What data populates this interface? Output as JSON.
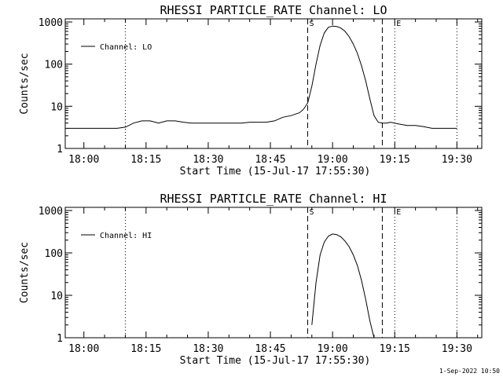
{
  "footer": "1-Sep-2022 10:50",
  "chart_data": [
    {
      "type": "line",
      "title": "RHESSI PARTICLE_RATE Channel: LO",
      "ylabel": "Counts/sec",
      "xlabel": "Start Time (15-Jul-17 17:55:30)",
      "legend": "Channel: LO",
      "legend_position": "top-left",
      "yscale": "log",
      "ylim": [
        1,
        1000
      ],
      "xlim": [
        "17:55:30",
        "19:36:00"
      ],
      "x_ticks": [
        "18:00",
        "18:15",
        "18:30",
        "18:45",
        "19:00",
        "19:15",
        "19:30"
      ],
      "y_ticks": [
        "1",
        "10",
        "100",
        "1000"
      ],
      "markers": [
        {
          "label": "",
          "time": "18:10",
          "style": "dotted"
        },
        {
          "label": "S",
          "time": "18:54",
          "style": "dashed"
        },
        {
          "label": "",
          "time": "19:12",
          "style": "dashed"
        },
        {
          "label": "E",
          "time": "19:15",
          "style": "dotted"
        },
        {
          "label": "",
          "time": "19:30",
          "style": "dotted"
        }
      ],
      "series": [
        {
          "x": [
            "17:56",
            "17:58",
            "18:00",
            "18:02",
            "18:04",
            "18:06",
            "18:08",
            "18:10",
            "18:12",
            "18:14",
            "18:16",
            "18:18",
            "18:20",
            "18:22",
            "18:24",
            "18:26",
            "18:28",
            "18:30",
            "18:32",
            "18:34",
            "18:36",
            "18:38",
            "18:40",
            "18:42",
            "18:44",
            "18:46",
            "18:48",
            "18:50",
            "18:52",
            "18:53",
            "18:54",
            "18:55",
            "18:56",
            "18:57",
            "18:58",
            "18:59",
            "19:00",
            "19:01",
            "19:02",
            "19:03",
            "19:04",
            "19:05",
            "19:06",
            "19:07",
            "19:08",
            "19:09",
            "19:10",
            "19:11",
            "19:12",
            "19:13",
            "19:14",
            "19:16",
            "19:18",
            "19:20",
            "19:22",
            "19:24",
            "19:26",
            "19:28",
            "19:30"
          ],
          "values": [
            3,
            3,
            3,
            3,
            3,
            3,
            3,
            3.2,
            4,
            4.5,
            4.5,
            4,
            4.5,
            4.5,
            4.2,
            4,
            4,
            4,
            4,
            4,
            4,
            4,
            4.2,
            4.2,
            4.2,
            4.5,
            5.5,
            6,
            7,
            8.5,
            12,
            30,
            100,
            280,
            550,
            750,
            800,
            780,
            720,
            600,
            450,
            300,
            180,
            90,
            40,
            15,
            6,
            4.2,
            4,
            4,
            4.2,
            3.8,
            3.5,
            3.5,
            3.3,
            3,
            3,
            3,
            3
          ]
        }
      ]
    },
    {
      "type": "line",
      "title": "RHESSI PARTICLE_RATE Channel: HI",
      "ylabel": "Counts/sec",
      "xlabel": "Start Time (15-Jul-17 17:55:30)",
      "legend": "Channel: HI",
      "legend_position": "top-left",
      "yscale": "log",
      "ylim": [
        1,
        1000
      ],
      "xlim": [
        "17:55:30",
        "19:36:00"
      ],
      "x_ticks": [
        "18:00",
        "18:15",
        "18:30",
        "18:45",
        "19:00",
        "19:15",
        "19:30"
      ],
      "y_ticks": [
        "1",
        "10",
        "100",
        "1000"
      ],
      "markers": [
        {
          "label": "",
          "time": "18:10",
          "style": "dotted"
        },
        {
          "label": "S",
          "time": "18:54",
          "style": "dashed"
        },
        {
          "label": "",
          "time": "19:12",
          "style": "dashed"
        },
        {
          "label": "E",
          "time": "19:15",
          "style": "dotted"
        },
        {
          "label": "",
          "time": "19:30",
          "style": "dotted"
        }
      ],
      "series": [
        {
          "x": [
            "18:55",
            "18:56",
            "18:57",
            "18:58",
            "18:59",
            "19:00",
            "19:01",
            "19:02",
            "19:03",
            "19:04",
            "19:05",
            "19:06",
            "19:07",
            "19:08",
            "19:09",
            "19:10"
          ],
          "values": [
            2,
            20,
            90,
            180,
            250,
            280,
            270,
            240,
            190,
            140,
            90,
            50,
            22,
            8,
            2.5,
            1
          ]
        }
      ]
    }
  ]
}
